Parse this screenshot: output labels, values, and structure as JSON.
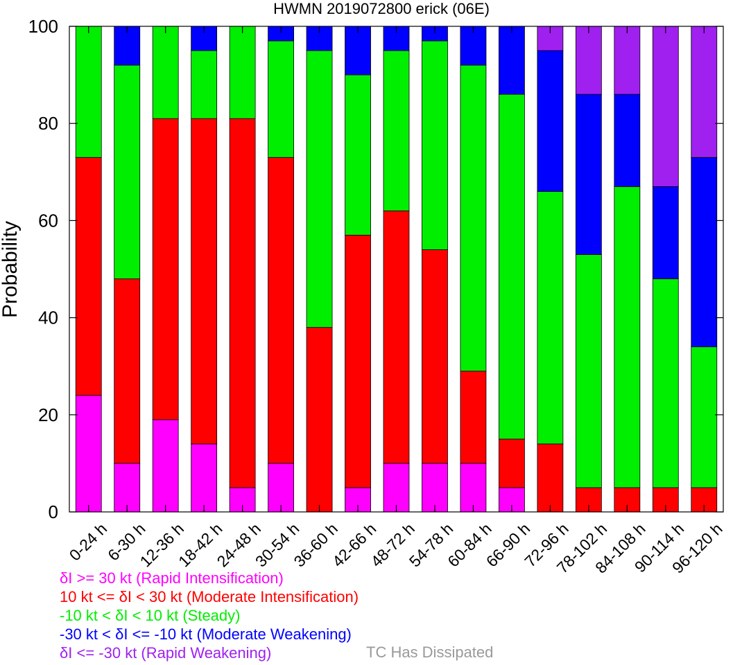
{
  "chart_data": {
    "type": "bar",
    "stacked": true,
    "title": "HWMN 2019072800 erick (06E)",
    "ylabel": "Probability",
    "xlabel": "",
    "ylim": [
      0,
      100
    ],
    "yticks": [
      0,
      20,
      40,
      60,
      80,
      100
    ],
    "grid": false,
    "categories": [
      "0-24 h",
      "6-30 h",
      "12-36 h",
      "18-42 h",
      "24-48 h",
      "30-54 h",
      "36-60 h",
      "42-66 h",
      "48-72 h",
      "54-78 h",
      "60-84 h",
      "66-90 h",
      "72-96 h",
      "78-102 h",
      "84-108 h",
      "90-114 h",
      "96-120 h"
    ],
    "series": [
      {
        "name": "δI >= 30 kt (Rapid Intensification)",
        "color": "#ff00ff",
        "values": [
          24,
          10,
          19,
          14,
          5,
          10,
          0,
          5,
          10,
          10,
          10,
          5,
          0,
          0,
          0,
          0,
          0
        ]
      },
      {
        "name": "10 kt <= δI < 30 kt (Moderate Intensification)",
        "color": "#ff0000",
        "values": [
          49,
          38,
          62,
          67,
          76,
          63,
          38,
          52,
          52,
          44,
          19,
          10,
          14,
          5,
          5,
          5,
          5
        ]
      },
      {
        "name": "-10 kt < δI < 10 kt (Steady)",
        "color": "#00ee00",
        "values": [
          27,
          44,
          19,
          14,
          19,
          24,
          57,
          33,
          33,
          43,
          63,
          71,
          52,
          48,
          62,
          43,
          29
        ]
      },
      {
        "name": "-30 kt < δI <= -10 kt (Moderate Weakening)",
        "color": "#0000ff",
        "values": [
          0,
          8,
          0,
          5,
          0,
          3,
          5,
          10,
          5,
          3,
          8,
          14,
          29,
          33,
          19,
          19,
          39
        ]
      },
      {
        "name": "δI <= -30 kt (Rapid Weakening)",
        "color": "#a020f0",
        "values": [
          0,
          0,
          0,
          0,
          0,
          0,
          0,
          0,
          0,
          0,
          0,
          0,
          5,
          14,
          14,
          33,
          27
        ]
      }
    ],
    "dissipated": {
      "label": "TC Has Dissipated",
      "color": "#999999",
      "values": [
        0,
        0,
        0,
        0,
        0,
        0,
        0,
        0,
        0,
        0,
        0,
        0,
        0,
        0,
        0,
        0,
        0
      ]
    }
  }
}
